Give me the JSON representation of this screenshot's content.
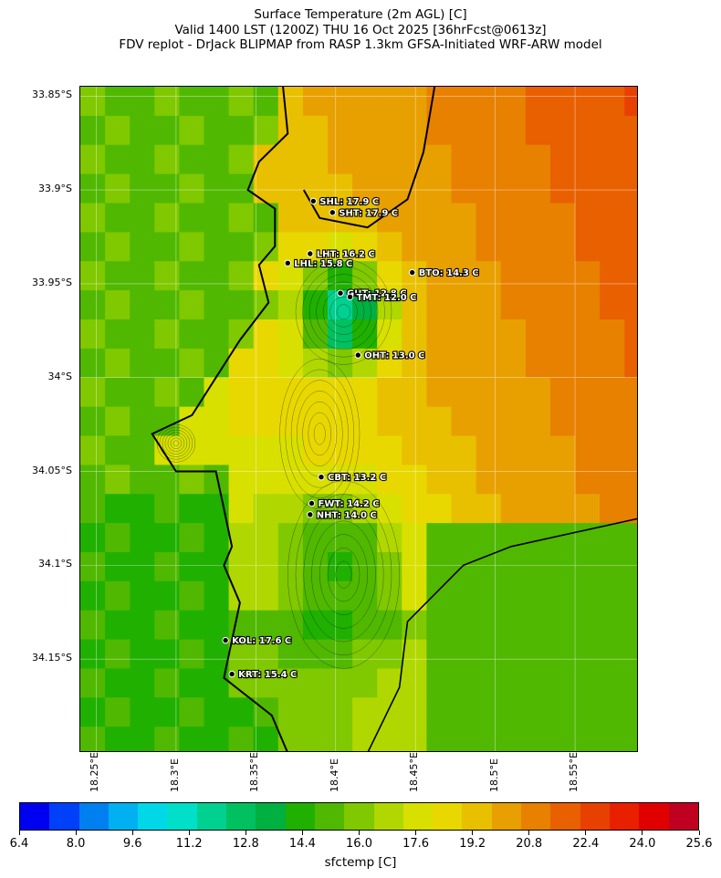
{
  "title": {
    "line1": "Surface Temperature (2m AGL) [C]",
    "line2": "Valid 1400 LST (1200Z) THU 16 Oct 2025 [36hrFcst@0613z]",
    "line3": "FDV replot - DrJack BLIPMAP from RASP 1.3km GFSA-Initiated WRF-ARW model"
  },
  "axes": {
    "lat_labels": [
      "33.85°S",
      "33.9°S",
      "33.95°S",
      "34°S",
      "34.05°S",
      "34.1°S",
      "34.15°S"
    ],
    "lon_labels": [
      "18.25°E",
      "18.3°E",
      "18.35°E",
      "18.4°E",
      "18.45°E",
      "18.5°E",
      "18.55°E"
    ]
  },
  "stations": [
    {
      "code": "SHL",
      "label": "SHL: 17.9 C",
      "lat": -33.906,
      "lon": 18.386
    },
    {
      "code": "SHT",
      "label": "SHT: 17.9 C",
      "lat": -33.912,
      "lon": 18.398
    },
    {
      "code": "LHT",
      "label": "LHT: 16.2 C",
      "lat": -33.934,
      "lon": 18.384
    },
    {
      "code": "LHL",
      "label": "LHL: 15.8 C",
      "lat": -33.939,
      "lon": 18.37
    },
    {
      "code": "BTO",
      "label": "BTO: 14.3 C",
      "lat": -33.944,
      "lon": 18.448
    },
    {
      "code": "GUT",
      "label": "GUT: 12.8 C",
      "lat": -33.955,
      "lon": 18.403
    },
    {
      "code": "TMT",
      "label": "TMT: 12.0 C",
      "lat": -33.957,
      "lon": 18.409
    },
    {
      "code": "OHT",
      "label": "OHT: 13.0 C",
      "lat": -33.988,
      "lon": 18.414
    },
    {
      "code": "CBT",
      "label": "CBT: 13.2 C",
      "lat": -34.053,
      "lon": 18.391
    },
    {
      "code": "FWT",
      "label": "FWT: 14.2 C",
      "lat": -34.067,
      "lon": 18.385
    },
    {
      "code": "NHT",
      "label": "NHT: 14.0 C",
      "lat": -34.073,
      "lon": 18.384
    },
    {
      "code": "KOL",
      "label": "KOL: 17.6 C",
      "lat": -34.14,
      "lon": 18.331
    },
    {
      "code": "KRT",
      "label": "KRT: 15.4 C",
      "lat": -34.158,
      "lon": 18.335
    }
  ],
  "colorbar": {
    "title": "sfctemp [C]",
    "tick_labels": [
      "6.4",
      "8.0",
      "9.6",
      "11.2",
      "12.8",
      "14.4",
      "16.0",
      "17.6",
      "19.2",
      "20.8",
      "22.4",
      "24.0",
      "25.6"
    ],
    "min": 6.4,
    "max": 25.6,
    "step": 0.8,
    "colors": [
      "#0000f0",
      "#0040f8",
      "#0080f0",
      "#00b0f0",
      "#00d8e8",
      "#00e0c8",
      "#00d090",
      "#00c060",
      "#00b040",
      "#20b000",
      "#50b800",
      "#80c800",
      "#b0d800",
      "#d8e000",
      "#e8d800",
      "#e8c000",
      "#e8a000",
      "#e88000",
      "#e86000",
      "#e84000",
      "#e82000",
      "#e00000",
      "#c00020"
    ]
  },
  "map": {
    "lat_range": [
      -34.2,
      -33.845
    ],
    "lon_range": [
      18.24,
      18.59
    ],
    "coastline_color": "#000000",
    "contour_color": "#000000",
    "grid_color": "#ffffff"
  }
}
